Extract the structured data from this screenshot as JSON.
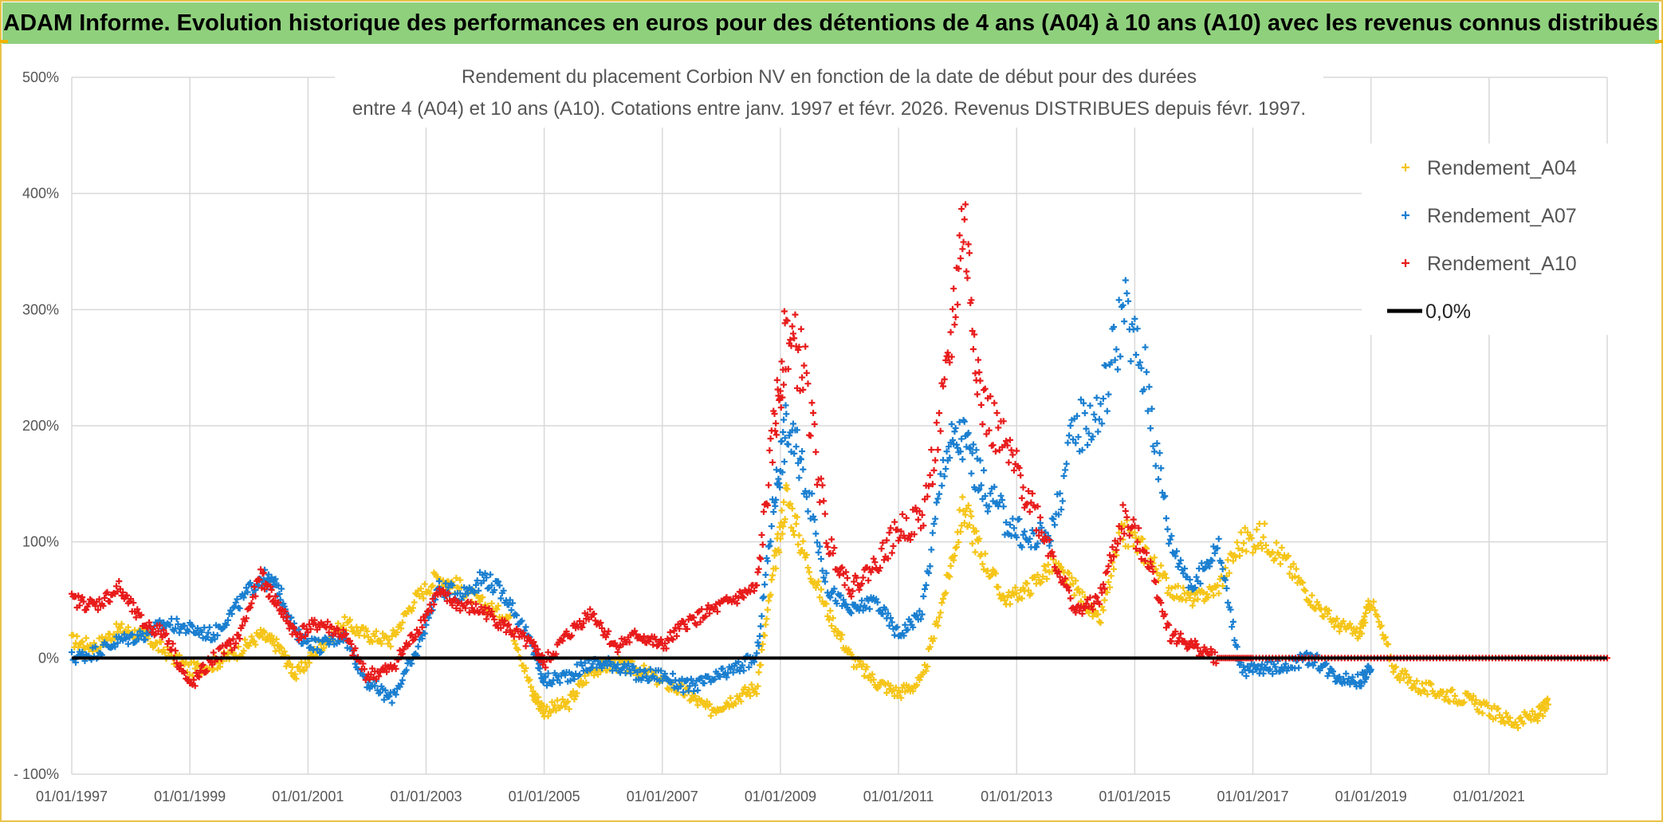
{
  "banner": {
    "title": "ADAM Informe. Evolution historique des performances en euros pour des détentions de 4 ans (A04) à 10 ans (A10) avec les revenus connus distribués"
  },
  "chart_data": {
    "type": "scatter",
    "title_line1": "Rendement du placement Corbion NV en fonction de la date de début pour des durées",
    "title_line2": "entre 4 (A04) et 10 ans (A10). Cotations entre janv. 1997 et févr. 2026. Revenus DISTRIBUES depuis févr. 1997.",
    "x_label": "",
    "y_label": "",
    "x_range": [
      1997.0,
      2023.0
    ],
    "y_range": [
      -100,
      500
    ],
    "x_ticks": [
      {
        "x": 1997,
        "label": "01/01/1997"
      },
      {
        "x": 1999,
        "label": "01/01/1999"
      },
      {
        "x": 2001,
        "label": "01/01/2001"
      },
      {
        "x": 2003,
        "label": "01/01/2003"
      },
      {
        "x": 2005,
        "label": "01/01/2005"
      },
      {
        "x": 2007,
        "label": "01/01/2007"
      },
      {
        "x": 2009,
        "label": "01/01/2009"
      },
      {
        "x": 2011,
        "label": "01/01/2011"
      },
      {
        "x": 2013,
        "label": "01/01/2013"
      },
      {
        "x": 2015,
        "label": "01/01/2015"
      },
      {
        "x": 2017,
        "label": "01/01/2017"
      },
      {
        "x": 2019,
        "label": "01/01/2019"
      },
      {
        "x": 2021,
        "label": "01/01/2021"
      }
    ],
    "y_ticks": [
      {
        "y": 500,
        "label": "500%"
      },
      {
        "y": 400,
        "label": "400%"
      },
      {
        "y": 300,
        "label": "300%"
      },
      {
        "y": 200,
        "label": "200%"
      },
      {
        "y": 100,
        "label": "100%"
      },
      {
        "y": 0,
        "label": "0%"
      },
      {
        "y": -100,
        "label": "- 100%"
      }
    ],
    "series": [
      {
        "name": "Rendement_A04",
        "color": "#f5c518",
        "points": [
          [
            1997.0,
            15
          ],
          [
            1997.4,
            10
          ],
          [
            1997.8,
            25
          ],
          [
            1998.2,
            20
          ],
          [
            1998.6,
            5
          ],
          [
            1999.0,
            -10
          ],
          [
            1999.4,
            -5
          ],
          [
            1999.8,
            5
          ],
          [
            2000.2,
            20
          ],
          [
            2000.5,
            10
          ],
          [
            2000.8,
            -15
          ],
          [
            2001.2,
            10
          ],
          [
            2001.6,
            30
          ],
          [
            2002.0,
            20
          ],
          [
            2002.4,
            15
          ],
          [
            2002.8,
            50
          ],
          [
            2003.2,
            70
          ],
          [
            2003.6,
            60
          ],
          [
            2004.0,
            45
          ],
          [
            2004.4,
            35
          ],
          [
            2004.8,
            -30
          ],
          [
            2005.0,
            -45
          ],
          [
            2005.4,
            -40
          ],
          [
            2005.8,
            -10
          ],
          [
            2006.2,
            -5
          ],
          [
            2006.6,
            -10
          ],
          [
            2007.0,
            -20
          ],
          [
            2007.4,
            -30
          ],
          [
            2007.8,
            -45
          ],
          [
            2008.2,
            -35
          ],
          [
            2008.6,
            -25
          ],
          [
            2008.9,
            80
          ],
          [
            2009.1,
            140
          ],
          [
            2009.4,
            90
          ],
          [
            2009.8,
            40
          ],
          [
            2010.2,
            0
          ],
          [
            2010.6,
            -20
          ],
          [
            2011.0,
            -30
          ],
          [
            2011.4,
            -20
          ],
          [
            2011.8,
            60
          ],
          [
            2012.1,
            130
          ],
          [
            2012.4,
            90
          ],
          [
            2012.8,
            50
          ],
          [
            2013.2,
            60
          ],
          [
            2013.6,
            80
          ],
          [
            2014.0,
            60
          ],
          [
            2014.4,
            30
          ],
          [
            2014.8,
            110
          ],
          [
            2015.2,
            90
          ],
          [
            2015.6,
            60
          ],
          [
            2016.0,
            50
          ],
          [
            2016.4,
            60
          ],
          [
            2016.8,
            100
          ],
          [
            2017.2,
            105
          ],
          [
            2017.6,
            80
          ],
          [
            2018.0,
            50
          ],
          [
            2018.4,
            30
          ],
          [
            2018.8,
            20
          ],
          [
            2019.0,
            50
          ],
          [
            2019.4,
            -10
          ],
          [
            2019.8,
            -25
          ],
          [
            2020.2,
            -30
          ],
          [
            2020.6,
            -35
          ],
          [
            2021.0,
            -45
          ],
          [
            2021.4,
            -55
          ],
          [
            2021.8,
            -50
          ],
          [
            2022.0,
            -40
          ]
        ]
      },
      {
        "name": "Rendement_A07",
        "color": "#1a7fd0",
        "points": [
          [
            1997.0,
            0
          ],
          [
            1997.4,
            5
          ],
          [
            1997.8,
            15
          ],
          [
            1998.2,
            20
          ],
          [
            1998.6,
            30
          ],
          [
            1999.0,
            25
          ],
          [
            1999.4,
            20
          ],
          [
            1999.8,
            45
          ],
          [
            2000.2,
            70
          ],
          [
            2000.5,
            60
          ],
          [
            2000.8,
            20
          ],
          [
            2001.2,
            10
          ],
          [
            2001.6,
            20
          ],
          [
            2002.0,
            -20
          ],
          [
            2002.4,
            -35
          ],
          [
            2002.8,
            0
          ],
          [
            2003.2,
            60
          ],
          [
            2003.6,
            55
          ],
          [
            2004.0,
            70
          ],
          [
            2004.4,
            50
          ],
          [
            2004.8,
            10
          ],
          [
            2005.0,
            -20
          ],
          [
            2005.4,
            -15
          ],
          [
            2005.8,
            -5
          ],
          [
            2006.2,
            -5
          ],
          [
            2006.6,
            -15
          ],
          [
            2007.0,
            -15
          ],
          [
            2007.4,
            -25
          ],
          [
            2007.8,
            -20
          ],
          [
            2008.2,
            -10
          ],
          [
            2008.6,
            0
          ],
          [
            2008.9,
            140
          ],
          [
            2009.1,
            200
          ],
          [
            2009.4,
            160
          ],
          [
            2009.8,
            60
          ],
          [
            2010.2,
            40
          ],
          [
            2010.6,
            50
          ],
          [
            2011.0,
            20
          ],
          [
            2011.4,
            40
          ],
          [
            2011.8,
            180
          ],
          [
            2012.1,
            190
          ],
          [
            2012.4,
            150
          ],
          [
            2012.8,
            120
          ],
          [
            2013.2,
            100
          ],
          [
            2013.6,
            110
          ],
          [
            2014.0,
            200
          ],
          [
            2014.4,
            210
          ],
          [
            2014.8,
            300
          ],
          [
            2015.2,
            240
          ],
          [
            2015.6,
            100
          ],
          [
            2016.0,
            60
          ],
          [
            2016.4,
            100
          ],
          [
            2016.8,
            -10
          ],
          [
            2017.2,
            -10
          ],
          [
            2017.6,
            -5
          ],
          [
            2018.0,
            0
          ],
          [
            2018.4,
            -15
          ],
          [
            2018.8,
            -20
          ],
          [
            2019.0,
            -10
          ]
        ]
      },
      {
        "name": "Rendement_A10",
        "color": "#e81b1b",
        "points": [
          [
            1997.0,
            50
          ],
          [
            1997.4,
            45
          ],
          [
            1997.8,
            60
          ],
          [
            1998.2,
            30
          ],
          [
            1998.6,
            20
          ],
          [
            1999.0,
            -25
          ],
          [
            1999.4,
            0
          ],
          [
            1999.8,
            15
          ],
          [
            2000.2,
            70
          ],
          [
            2000.5,
            45
          ],
          [
            2000.8,
            20
          ],
          [
            2001.2,
            30
          ],
          [
            2001.6,
            20
          ],
          [
            2002.0,
            -15
          ],
          [
            2002.4,
            -10
          ],
          [
            2002.8,
            20
          ],
          [
            2003.2,
            55
          ],
          [
            2003.6,
            45
          ],
          [
            2004.0,
            40
          ],
          [
            2004.4,
            25
          ],
          [
            2004.8,
            10
          ],
          [
            2005.0,
            -5
          ],
          [
            2005.4,
            20
          ],
          [
            2005.8,
            40
          ],
          [
            2006.2,
            10
          ],
          [
            2006.6,
            20
          ],
          [
            2007.0,
            10
          ],
          [
            2007.4,
            30
          ],
          [
            2007.8,
            40
          ],
          [
            2008.2,
            50
          ],
          [
            2008.6,
            60
          ],
          [
            2008.9,
            200
          ],
          [
            2009.1,
            280
          ],
          [
            2009.4,
            250
          ],
          [
            2009.8,
            100
          ],
          [
            2010.2,
            60
          ],
          [
            2010.6,
            80
          ],
          [
            2011.0,
            110
          ],
          [
            2011.4,
            120
          ],
          [
            2011.8,
            230
          ],
          [
            2012.1,
            380
          ],
          [
            2012.4,
            220
          ],
          [
            2012.8,
            180
          ],
          [
            2013.2,
            140
          ],
          [
            2013.6,
            90
          ],
          [
            2014.0,
            40
          ],
          [
            2014.4,
            50
          ],
          [
            2014.8,
            120
          ],
          [
            2015.2,
            90
          ],
          [
            2015.6,
            20
          ],
          [
            2016.0,
            10
          ],
          [
            2016.4,
            0
          ],
          [
            2017.0,
            0
          ],
          [
            2018.0,
            0
          ],
          [
            2019.0,
            0
          ],
          [
            2020.0,
            0
          ],
          [
            2021.0,
            0
          ],
          [
            2022.0,
            0
          ],
          [
            2023.0,
            0
          ]
        ]
      },
      {
        "name": "0,0%",
        "color": "#000000",
        "points": [
          [
            1997.0,
            0
          ],
          [
            2023.0,
            0
          ]
        ]
      }
    ],
    "legend_position": "top-right",
    "grid": true
  }
}
